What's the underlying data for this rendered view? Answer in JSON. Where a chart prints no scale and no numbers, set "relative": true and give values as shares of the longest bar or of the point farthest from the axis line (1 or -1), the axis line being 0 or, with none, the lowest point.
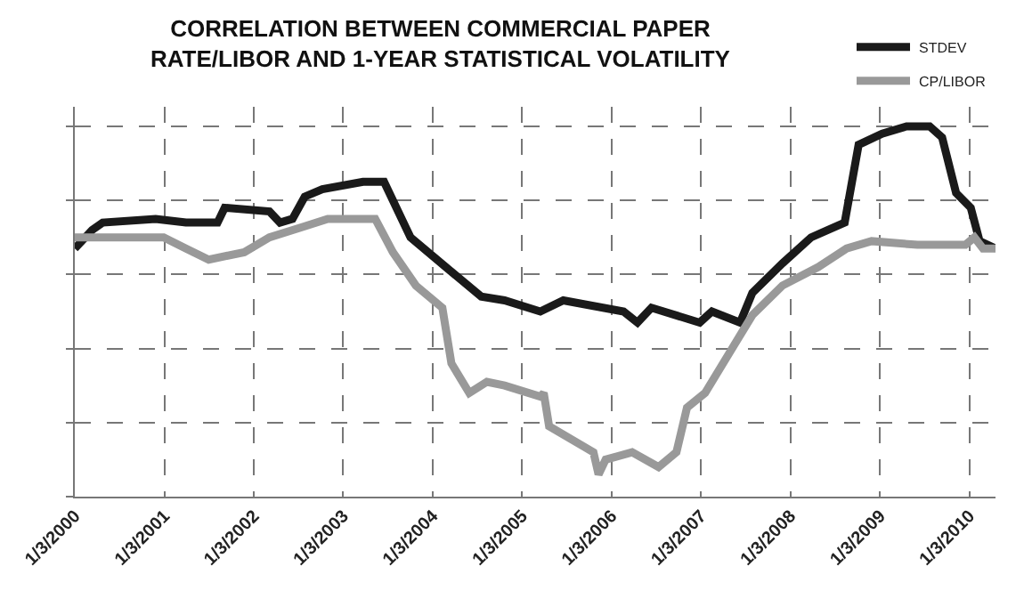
{
  "chart_data": {
    "type": "line",
    "title": "CORRELATION BETWEEN COMMERCIAL PAPER RATE/LIBOR AND 1-YEAR STATISTICAL VOLATILITY",
    "relative": true,
    "grid": true,
    "legend": "top right",
    "line_style": "solid",
    "marker": "none",
    "xlim": [
      "2000-01-03",
      "2010-04-20"
    ],
    "xticks": [
      {
        "value": "2000-01-03",
        "label": "1/3/2000"
      },
      {
        "value": "2001-01-03",
        "label": "1/3/2001"
      },
      {
        "value": "2002-01-03",
        "label": "1/3/2002"
      },
      {
        "value": "2003-01-03",
        "label": "1/3/2003"
      },
      {
        "value": "2004-01-03",
        "label": "1/3/2004"
      },
      {
        "value": "2005-01-03",
        "label": "1/3/2005"
      },
      {
        "value": "2006-01-03",
        "label": "1/3/2006"
      },
      {
        "value": "2007-01-03",
        "label": "1/3/2007"
      },
      {
        "value": "2008-01-03",
        "label": "1/3/2008"
      },
      {
        "value": "2009-01-03",
        "label": "1/3/2009"
      },
      {
        "value": "2010-01-03",
        "label": "1/3/2010"
      }
    ],
    "series": [
      {
        "name": "STDEV",
        "color": "#1a1a1a",
        "x": [
          "2000-01-03",
          "2000-03-14",
          "2000-04-26",
          "2000-11-28",
          "2001-04-01",
          "2001-08-08",
          "2001-09-06",
          "2002-03-08",
          "2002-04-20",
          "2002-06-10",
          "2002-07-30",
          "2002-10-10",
          "2003-03-25",
          "2003-06-19",
          "2003-10-05",
          "2004-02-26",
          "2004-07-20",
          "2004-10-23",
          "2005-03-18",
          "2005-06-20",
          "2006-02-21",
          "2006-04-19",
          "2006-06-15",
          "2006-12-29",
          "2007-02-17",
          "2007-06-12",
          "2007-08-01",
          "2007-12-02",
          "2008-03-28",
          "2008-08-12",
          "2008-10-08",
          "2009-01-12",
          "2009-04-22",
          "2009-07-25",
          "2009-09-14",
          "2009-11-10",
          "2010-01-09",
          "2010-02-14",
          "2010-04-20"
        ],
        "values": [
          0.67,
          0.72,
          0.74,
          0.75,
          0.74,
          0.74,
          0.78,
          0.77,
          0.74,
          0.75,
          0.81,
          0.83,
          0.85,
          0.85,
          0.7,
          0.62,
          0.54,
          0.53,
          0.5,
          0.53,
          0.5,
          0.47,
          0.51,
          0.47,
          0.5,
          0.47,
          0.55,
          0.63,
          0.7,
          0.74,
          0.95,
          0.98,
          1,
          1,
          0.97,
          0.82,
          0.78,
          0.69,
          0.67
        ]
      },
      {
        "name": "CP/LIBOR",
        "color": "#999999",
        "x": [
          "2000-01-03",
          "2000-05-26",
          "2000-12-31",
          "2001-04-01",
          "2001-07-03",
          "2001-11-25",
          "2002-03-08",
          "2002-07-30",
          "2002-11-01",
          "2003-05-14",
          "2003-07-25",
          "2003-10-27",
          "2004-02-12",
          "2004-03-20",
          "2004-06-01",
          "2004-08-12",
          "2004-10-23",
          "2005-03-18",
          "2005-04-01",
          "2005-04-23",
          "2005-10-21",
          "2005-11-11",
          "2005-12-10",
          "2006-03-28",
          "2006-07-14",
          "2006-09-25",
          "2006-11-07",
          "2007-01-20",
          "2007-05-01",
          "2007-08-01",
          "2007-12-02",
          "2008-04-26",
          "2008-08-20",
          "2008-11-30",
          "2009-06-05",
          "2009-12-18",
          "2010-01-24",
          "2010-02-28",
          "2010-04-20"
        ],
        "values": [
          0.7,
          0.7,
          0.7,
          0.67,
          0.64,
          0.66,
          0.7,
          0.73,
          0.75,
          0.75,
          0.66,
          0.57,
          0.51,
          0.36,
          0.28,
          0.31,
          0.3,
          0.27,
          0.28,
          0.19,
          0.12,
          0.06,
          0.1,
          0.12,
          0.08,
          0.12,
          0.24,
          0.28,
          0.39,
          0.49,
          0.57,
          0.62,
          0.67,
          0.69,
          0.68,
          0.68,
          0.7,
          0.67,
          0.67
        ]
      }
    ]
  }
}
